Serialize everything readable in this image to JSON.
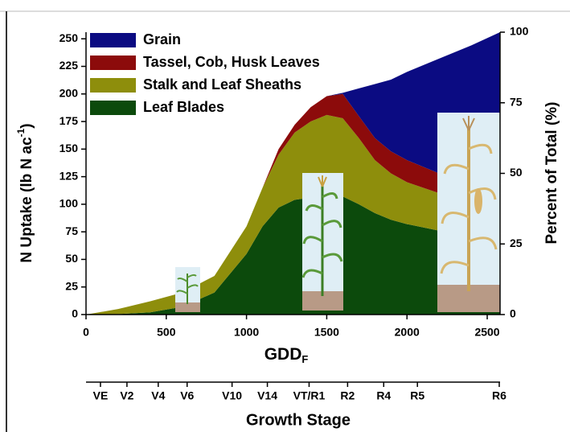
{
  "chart_data": {
    "type": "stacked-area",
    "x_label": {
      "text": "GDD",
      "sub": "F"
    },
    "y_label": {
      "text": "N Uptake (lb N ac",
      "sup": "-1",
      "end": ")"
    },
    "y2_label": "Percent of Total (%)",
    "stage_label": "Growth Stage",
    "x": [
      0,
      200,
      400,
      600,
      800,
      1000,
      1100,
      1200,
      1300,
      1400,
      1500,
      1600,
      1700,
      1800,
      1900,
      2000,
      2200,
      2400,
      2580
    ],
    "series": [
      {
        "name": "Grain",
        "color": "#0b0b82",
        "values": [
          0,
          0,
          0,
          0,
          0,
          0,
          0,
          0,
          0,
          0,
          0,
          1,
          25,
          49,
          65,
          80,
          104,
          126,
          146
        ]
      },
      {
        "name": "Tassel, Cob, Husk Leaves",
        "color": "#8c0b0b",
        "values": [
          0,
          0,
          0,
          0,
          0,
          0,
          0,
          5,
          7,
          13,
          17,
          22,
          20,
          20,
          20,
          20,
          18,
          18,
          15
        ]
      },
      {
        "name": "Stalk and Leaf Sheaths",
        "color": "#8e8e0c",
        "values": [
          0,
          4.5,
          10,
          13,
          15,
          25,
          35,
          48,
          61,
          69,
          74,
          71,
          60,
          48,
          42,
          38,
          34,
          28,
          25
        ]
      },
      {
        "name": "Leaf Blades",
        "color": "#0c4a0c",
        "values": [
          0,
          0.5,
          2,
          7,
          20,
          55,
          80,
          97,
          104,
          106,
          107,
          107,
          100,
          92,
          86,
          82,
          76,
          72,
          70
        ]
      }
    ],
    "xlim": [
      0,
      2580
    ],
    "xticks": [
      0,
      500,
      1000,
      1500,
      2000,
      2500
    ],
    "ylim": [
      0,
      256
    ],
    "yticks": [
      0,
      25,
      50,
      75,
      100,
      125,
      150,
      175,
      200,
      225,
      250
    ],
    "y2lim": [
      0,
      100
    ],
    "y2ticks": [
      0,
      25,
      50,
      75,
      100
    ],
    "stages": [
      {
        "value": 90,
        "label": "VE"
      },
      {
        "value": 255,
        "label": "V2"
      },
      {
        "value": 450,
        "label": "V4"
      },
      {
        "value": 630,
        "label": "V6"
      },
      {
        "value": 910,
        "label": "V10"
      },
      {
        "value": 1130,
        "label": "V14"
      },
      {
        "value": 1390,
        "label": "VT/R1"
      },
      {
        "value": 1630,
        "label": "R2"
      },
      {
        "value": 1855,
        "label": "R4"
      },
      {
        "value": 2065,
        "label": "R5"
      },
      {
        "value": 2575,
        "label": "R6"
      }
    ],
    "legend": "upper left"
  }
}
